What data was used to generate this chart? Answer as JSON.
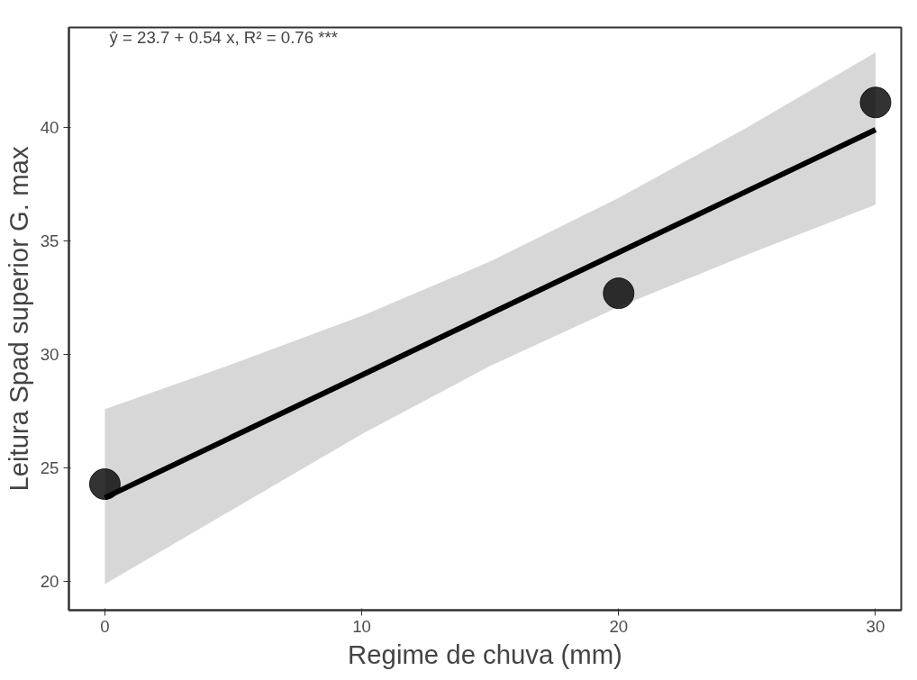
{
  "chart_data": {
    "type": "line",
    "xlabel": "Regime de chuva (mm)",
    "ylabel": "Leitura Spad superior G. max",
    "annotations": [
      "ŷ = 23.7 + 0.54 x,  R² = 0.76 ***"
    ],
    "series": [
      {
        "color": "#000000",
        "x": [
          0,
          5,
          10,
          15,
          20,
          25,
          30
        ],
        "values": [
          23.7,
          26.4,
          29.1,
          31.8,
          34.5,
          37.2,
          39.9
        ],
        "lower": [
          19.9,
          23.2,
          26.5,
          29.5,
          32.1,
          34.4,
          36.6
        ],
        "upper": [
          27.6,
          29.6,
          31.7,
          34.1,
          36.9,
          40.0,
          43.3
        ]
      },
      {
        "type": "scatter",
        "marker": "circle",
        "color": "#000000",
        "x": [
          0,
          20,
          30
        ],
        "values": [
          24.3,
          32.7,
          41.1
        ]
      }
    ],
    "xlim": [
      -1.4,
      31
    ],
    "ylim": [
      18.75,
      44.4
    ],
    "xticks": [
      0,
      10,
      20,
      30
    ],
    "yticks": [
      20,
      25,
      30,
      35,
      40
    ],
    "grid": false,
    "line_style": "solid"
  }
}
